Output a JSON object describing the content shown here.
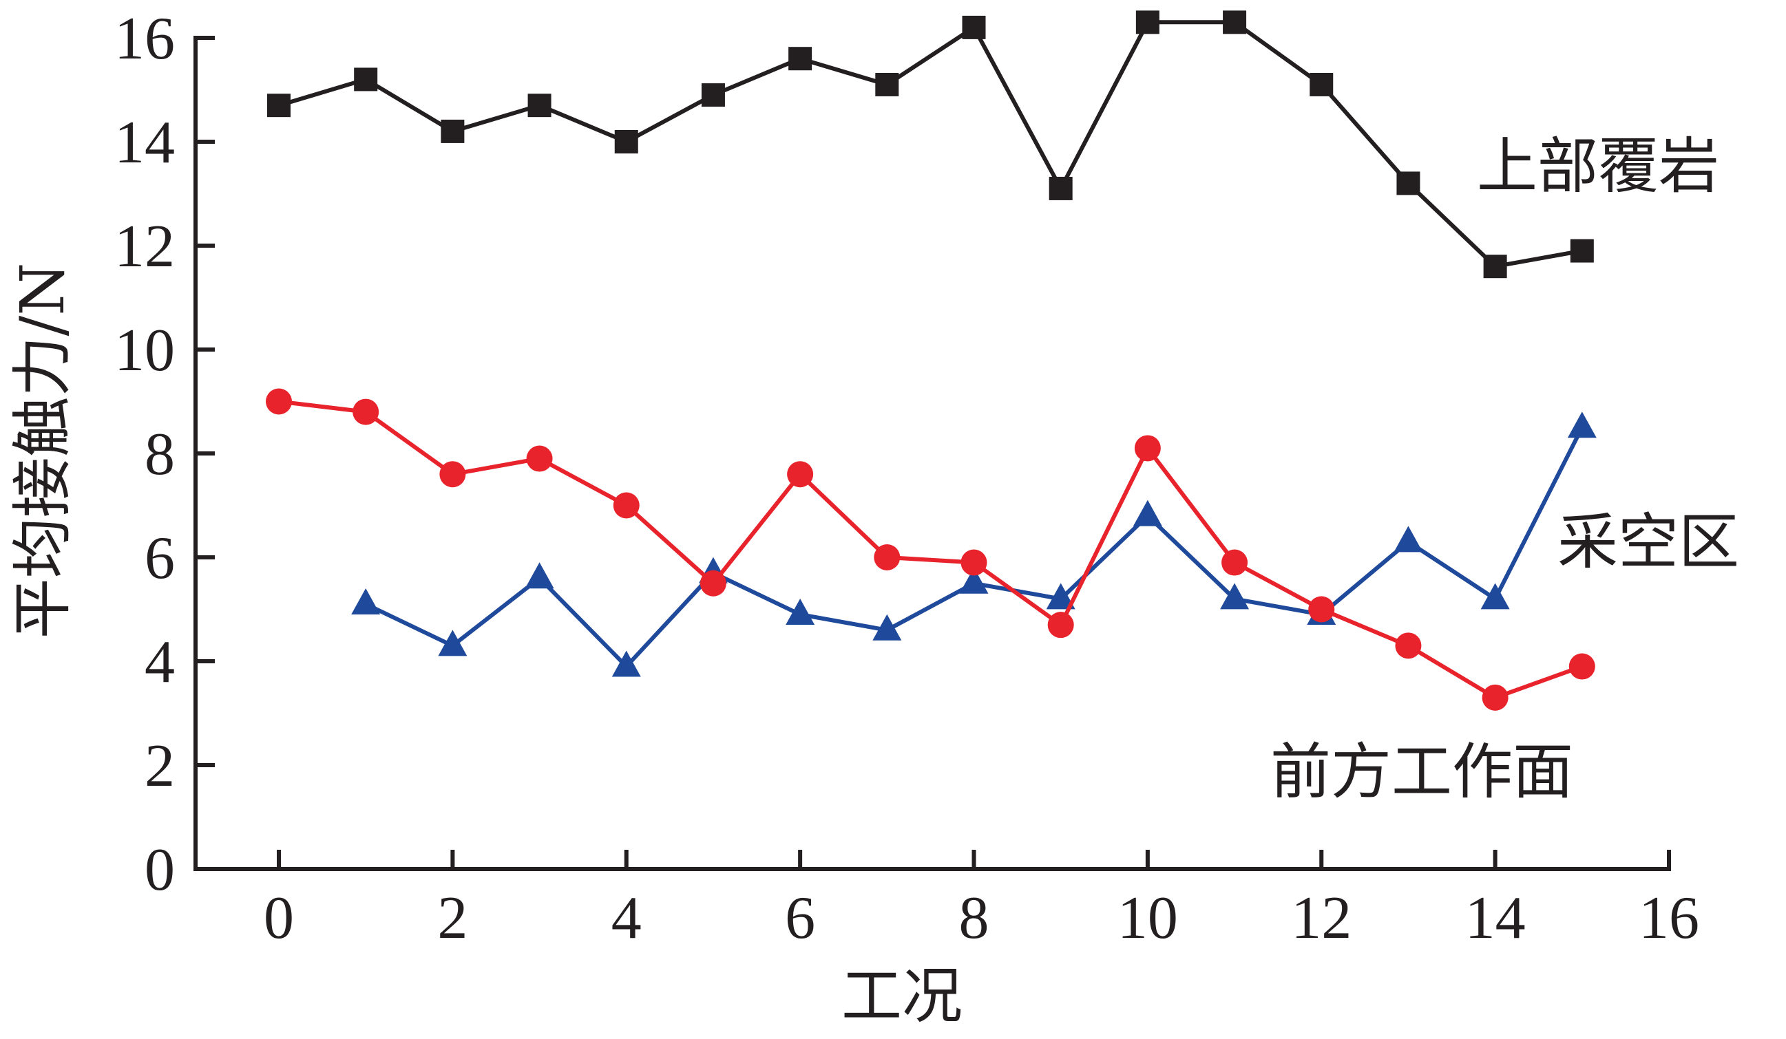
{
  "chart_data": {
    "type": "line",
    "title": "",
    "xlabel": "工况",
    "ylabel": "平均接触力/N",
    "xlim": [
      0,
      16
    ],
    "ylim": [
      0,
      16
    ],
    "x_ticks": [
      0,
      2,
      4,
      6,
      8,
      10,
      12,
      14,
      16
    ],
    "y_ticks": [
      0,
      2,
      4,
      6,
      8,
      10,
      12,
      14,
      16
    ],
    "grid": false,
    "legend": "none",
    "series": [
      {
        "name": "上部覆岩",
        "color": "#231f20",
        "marker": "square",
        "x": [
          0,
          1,
          2,
          3,
          4,
          5,
          6,
          7,
          8,
          9,
          10,
          11,
          12,
          13,
          14,
          15
        ],
        "y": [
          14.7,
          15.2,
          14.2,
          14.7,
          14.0,
          14.9,
          15.6,
          15.1,
          16.2,
          13.1,
          16.3,
          16.3,
          15.1,
          13.2,
          11.6,
          11.9
        ]
      },
      {
        "name": "采空区",
        "color": "#1f4a9b",
        "marker": "triangle",
        "x": [
          1,
          2,
          3,
          4,
          5,
          6,
          7,
          8,
          9,
          10,
          11,
          12,
          13,
          14,
          15
        ],
        "y": [
          5.1,
          4.3,
          5.6,
          3.9,
          5.7,
          4.9,
          4.6,
          5.5,
          5.2,
          6.8,
          5.2,
          4.9,
          6.3,
          5.2,
          8.5
        ]
      },
      {
        "name": "前方工作面",
        "color": "#e8232c",
        "marker": "circle",
        "x": [
          0,
          1,
          2,
          3,
          4,
          5,
          6,
          7,
          8,
          9,
          10,
          11,
          12,
          13,
          14,
          15
        ],
        "y": [
          9.0,
          8.8,
          7.6,
          7.9,
          7.0,
          5.5,
          7.6,
          6.0,
          5.9,
          4.7,
          8.1,
          5.9,
          5.0,
          4.3,
          3.3,
          3.9
        ]
      }
    ]
  }
}
